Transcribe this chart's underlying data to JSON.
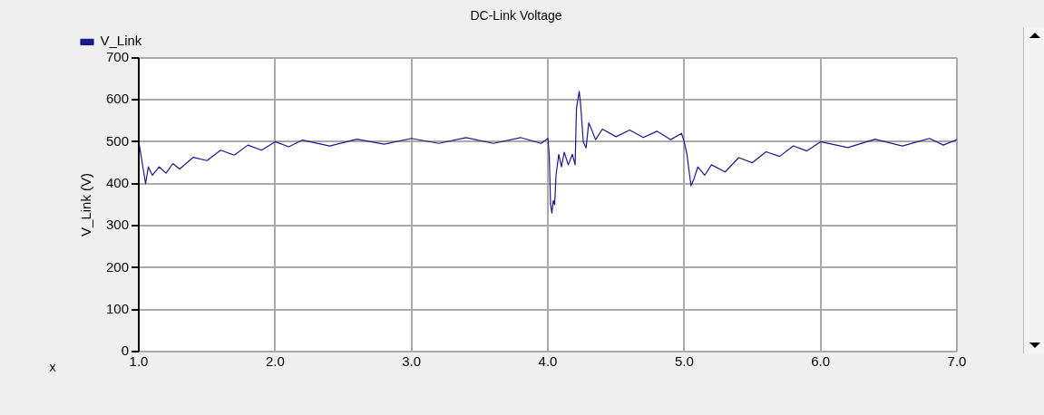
{
  "chart_data": {
    "type": "line",
    "title": "DC-Link Voltage",
    "xlabel": "x",
    "ylabel": "V_Link (V)",
    "x": [
      1.0,
      1.02,
      1.04,
      1.05,
      1.07,
      1.1,
      1.15,
      1.2,
      1.25,
      1.3,
      1.4,
      1.5,
      1.6,
      1.7,
      1.8,
      1.9,
      2.0,
      2.1,
      2.2,
      2.4,
      2.6,
      2.8,
      3.0,
      3.2,
      3.4,
      3.6,
      3.8,
      3.95,
      4.0,
      4.01,
      4.02,
      4.03,
      4.04,
      4.05,
      4.06,
      4.08,
      4.1,
      4.12,
      4.15,
      4.18,
      4.2,
      4.21,
      4.23,
      4.24,
      4.26,
      4.28,
      4.3,
      4.32,
      4.35,
      4.4,
      4.5,
      4.6,
      4.7,
      4.8,
      4.9,
      4.98,
      5.0,
      5.02,
      5.04,
      5.05,
      5.07,
      5.1,
      5.15,
      5.2,
      5.3,
      5.4,
      5.5,
      5.6,
      5.7,
      5.8,
      5.9,
      6.0,
      6.2,
      6.4,
      6.6,
      6.8,
      6.9,
      7.0
    ],
    "series": [
      {
        "name": "V_Link",
        "color": "#1a1a8c",
        "values": [
          500,
          460,
          420,
          400,
          440,
          420,
          440,
          425,
          448,
          435,
          463,
          455,
          480,
          468,
          492,
          480,
          500,
          488,
          504,
          490,
          506,
          494,
          508,
          496,
          510,
          496,
          510,
          496,
          508,
          470,
          350,
          330,
          360,
          350,
          420,
          470,
          440,
          475,
          445,
          470,
          445,
          580,
          620,
          590,
          500,
          485,
          545,
          530,
          505,
          530,
          512,
          528,
          510,
          525,
          505,
          520,
          500,
          470,
          420,
          395,
          410,
          440,
          420,
          445,
          428,
          462,
          450,
          476,
          465,
          490,
          478,
          500,
          486,
          506,
          490,
          508,
          492,
          505
        ]
      }
    ],
    "xlim": [
      1,
      7
    ],
    "xticks": [
      {
        "value": 1,
        "label": "1.0"
      },
      {
        "value": 2,
        "label": "2.0"
      },
      {
        "value": 3,
        "label": "3.0"
      },
      {
        "value": 4,
        "label": "4.0"
      },
      {
        "value": 5,
        "label": "5.0"
      },
      {
        "value": 6,
        "label": "6.0"
      },
      {
        "value": 7,
        "label": "7.0"
      }
    ],
    "ylim": [
      0,
      700
    ],
    "yticks": [
      0,
      100,
      200,
      300,
      400,
      500,
      600,
      700
    ],
    "grid": true,
    "legend": "top left",
    "marker": "none",
    "line_style": "solid"
  }
}
